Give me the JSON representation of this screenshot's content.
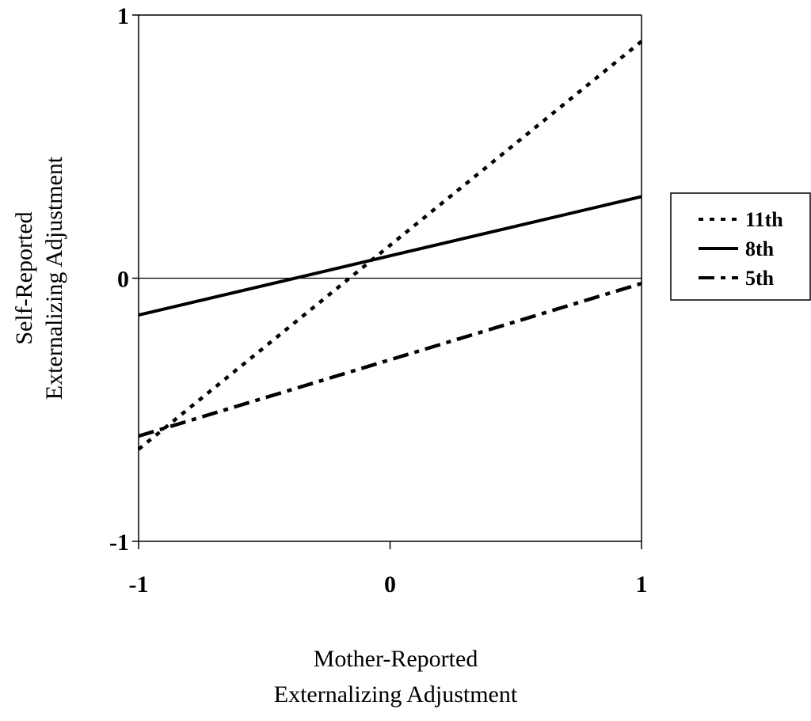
{
  "chart_data": {
    "type": "line",
    "xlabel_lines": [
      "Mother-Reported",
      "Externalizing Adjustment"
    ],
    "ylabel_lines": [
      "Self-Reported",
      "Externalizing Adjustment"
    ],
    "xlim": [
      -1,
      1
    ],
    "ylim": [
      -1,
      1
    ],
    "x_ticks": [
      -1,
      0,
      1
    ],
    "x_tick_labels": [
      "-1",
      "0",
      "1"
    ],
    "y_ticks": [
      -1,
      0,
      1
    ],
    "y_tick_labels": [
      "-1",
      "0",
      "1"
    ],
    "grid": false,
    "zero_line": true,
    "legend_position": "right",
    "series": [
      {
        "name": "11th",
        "x": [
          -1,
          1
        ],
        "y": [
          -0.65,
          0.9
        ],
        "line_style": "dotted",
        "color": "#000000"
      },
      {
        "name": "8th",
        "x": [
          -1,
          1
        ],
        "y": [
          -0.14,
          0.31
        ],
        "line_style": "solid",
        "color": "#000000"
      },
      {
        "name": "5th",
        "x": [
          -1,
          1
        ],
        "y": [
          -0.6,
          -0.02
        ],
        "line_style": "dash-dot",
        "color": "#000000"
      }
    ]
  }
}
